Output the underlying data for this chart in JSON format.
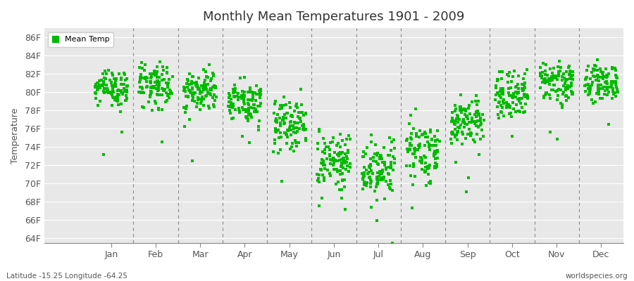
{
  "title": "Monthly Mean Temperatures 1901 - 2009",
  "ylabel": "Temperature",
  "xlabel_labels": [
    "Jan",
    "Feb",
    "Mar",
    "Apr",
    "May",
    "Jun",
    "Jul",
    "Aug",
    "Sep",
    "Oct",
    "Nov",
    "Dec"
  ],
  "footer_left": "Latitude -15.25 Longitude -64.25",
  "footer_right": "worldspecies.org",
  "legend_label": "Mean Temp",
  "dot_color": "#00bb00",
  "background_color": "#ffffff",
  "plot_bg_color": "#e8e8e8",
  "ytick_labels": [
    "64F",
    "66F",
    "68F",
    "70F",
    "72F",
    "74F",
    "76F",
    "78F",
    "80F",
    "82F",
    "84F",
    "86F"
  ],
  "ytick_values": [
    64,
    66,
    68,
    70,
    72,
    74,
    76,
    78,
    80,
    82,
    84,
    86
  ],
  "ylim": [
    63.5,
    87.0
  ],
  "xlim": [
    -0.5,
    12.5
  ],
  "years": 109,
  "monthly_means": [
    80.5,
    80.5,
    80.0,
    79.0,
    76.5,
    72.5,
    71.5,
    73.5,
    76.5,
    79.5,
    81.0,
    81.0
  ],
  "monthly_stds": [
    1.0,
    1.2,
    1.0,
    1.1,
    1.3,
    1.6,
    1.5,
    1.5,
    1.3,
    1.3,
    1.2,
    1.0
  ],
  "seed": 42
}
